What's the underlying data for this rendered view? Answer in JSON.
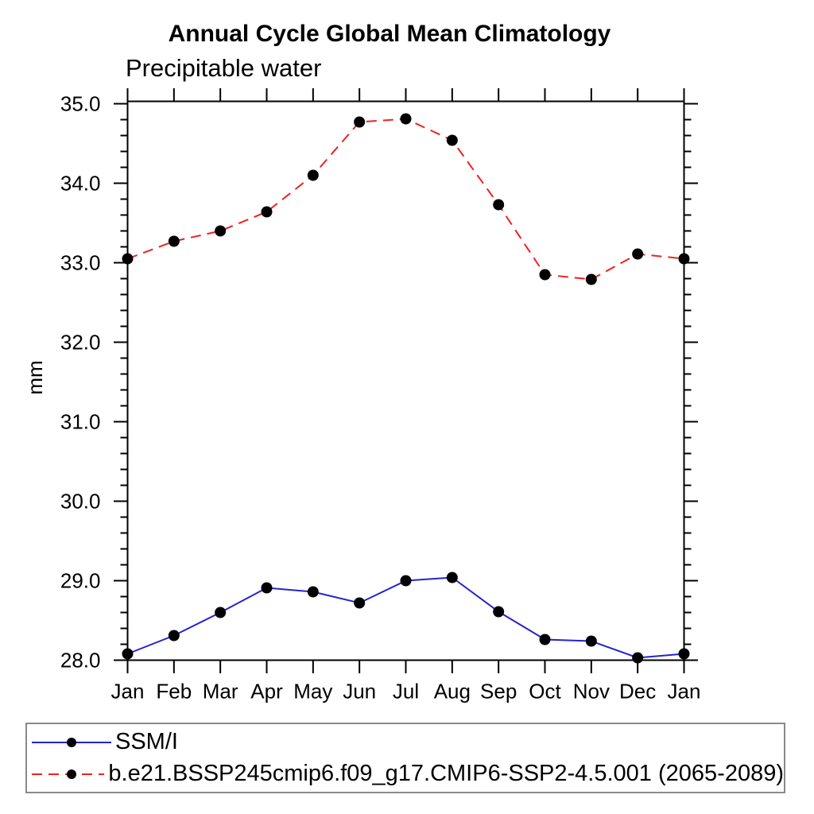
{
  "page": {
    "background": "#ffffff"
  },
  "chart_data": {
    "type": "line",
    "title": "Annual Cycle Global Mean Climatology",
    "subtitle": "Precipitable water",
    "ylabel": "mm",
    "xlabel": "",
    "categories": [
      "Jan",
      "Feb",
      "Mar",
      "Apr",
      "May",
      "Jun",
      "Jul",
      "Aug",
      "Sep",
      "Oct",
      "Nov",
      "Dec",
      "Jan"
    ],
    "ylim": [
      28.0,
      35.0
    ],
    "ytick_major_interval": 1.0,
    "ytick_minor_interval": 0.2,
    "ytick_labels": [
      "28.0",
      "29.0",
      "30.0",
      "31.0",
      "32.0",
      "33.0",
      "34.0",
      "35.0"
    ],
    "grid": false,
    "legend_position": "bottom",
    "axis_color": "#000000",
    "marker_color": "#000000",
    "series": [
      {
        "name": "SSM/I",
        "color": "#2323d2",
        "line_style": "solid",
        "marker": "filled-circle",
        "values": [
          28.08,
          28.31,
          28.6,
          28.91,
          28.86,
          28.72,
          29.0,
          29.04,
          28.61,
          28.26,
          28.24,
          28.03,
          28.08
        ]
      },
      {
        "name": "b.e21.BSSP245cmip6.f09_g17.CMIP6-SSP2-4.5.001 (2065-2089)",
        "color": "#ee2222",
        "line_style": "dashed",
        "marker": "filled-circle",
        "values": [
          33.05,
          33.27,
          33.4,
          33.64,
          34.1,
          34.77,
          34.81,
          34.54,
          33.73,
          32.85,
          32.79,
          33.11,
          33.05
        ]
      }
    ]
  },
  "legend": {
    "border_color": "#8a8a8a"
  }
}
